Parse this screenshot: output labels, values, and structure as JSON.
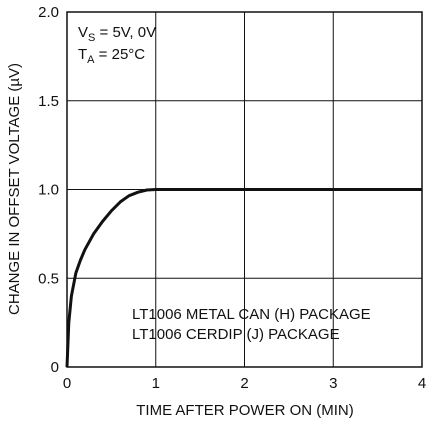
{
  "chart_data": {
    "type": "line",
    "title": "",
    "xlabel": "TIME AFTER POWER ON (MIN)",
    "ylabel": "CHANGE IN OFFSET VOLTAGE (µV)",
    "xlim": [
      0,
      4
    ],
    "ylim": [
      0,
      2.0
    ],
    "x_ticks": [
      "0",
      "1",
      "2",
      "3",
      "4"
    ],
    "y_ticks": [
      "0",
      "0.5",
      "1.0",
      "1.5",
      "2.0"
    ],
    "grid": true,
    "conditions": {
      "vs_prefix": "V",
      "vs_sub": "S",
      "vs_value": " = 5V, 0V",
      "ta_prefix": "T",
      "ta_sub": "A",
      "ta_value": " = 25°C"
    },
    "annotations": [
      "LT1006 METAL CAN (H) PACKAGE",
      "LT1006 CERDIP (J) PACKAGE"
    ],
    "series": [
      {
        "x": [
          0,
          0.02,
          0.05,
          0.1,
          0.15,
          0.2,
          0.3,
          0.4,
          0.5,
          0.6,
          0.7,
          0.8,
          0.9,
          1.0,
          1.05,
          2.0,
          3.0,
          4.0
        ],
        "y": [
          0,
          0.25,
          0.4,
          0.53,
          0.6,
          0.66,
          0.75,
          0.82,
          0.88,
          0.93,
          0.965,
          0.985,
          0.997,
          1.0,
          1.0,
          1.0,
          1.0,
          1.0
        ]
      }
    ]
  }
}
